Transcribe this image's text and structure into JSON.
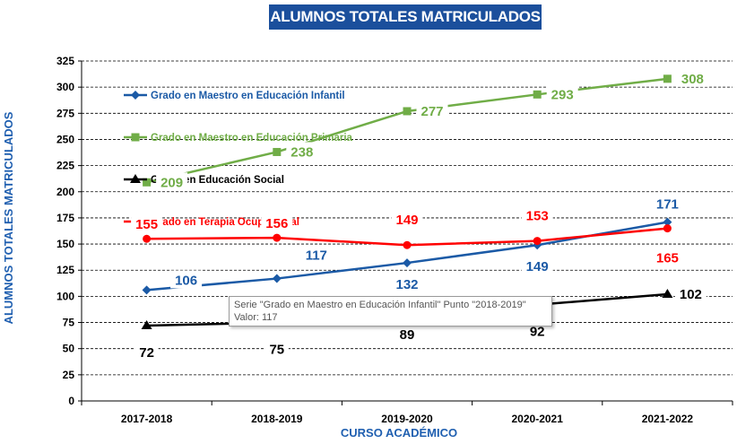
{
  "chart_data": {
    "type": "line",
    "title": "ALUMNOS TOTALES MATRICULADOS",
    "xlabel": "CURSO ACADÉMICO",
    "ylabel": "ALUMNOS TOTALES MATRICULADOS",
    "categories": [
      "2017-2018",
      "2018-2019",
      "2019-2020",
      "2020-2021",
      "2021-2022"
    ],
    "ylim": [
      0,
      325
    ],
    "yticks": [
      0,
      25,
      50,
      75,
      100,
      125,
      150,
      175,
      200,
      225,
      250,
      275,
      300,
      325
    ],
    "grid": "horizontal dashed",
    "legend_position": "inside-left",
    "series": [
      {
        "name": "Grado en Maestro en Educación Infantil",
        "color": "#1b5aa6",
        "marker": "diamond",
        "values": [
          106,
          117,
          132,
          149,
          171
        ]
      },
      {
        "name": "Grado en Maestro en Educación Primaria",
        "color": "#70ad47",
        "marker": "square",
        "values": [
          209,
          238,
          277,
          293,
          308
        ]
      },
      {
        "name": "Grado en Educación Social",
        "color": "#000000",
        "marker": "triangle",
        "values": [
          72,
          75,
          89,
          92,
          102
        ]
      },
      {
        "name": "Grado en Terapia Ocupacional",
        "color": "#ff0000",
        "marker": "circle",
        "values": [
          155,
          156,
          149,
          153,
          165
        ]
      }
    ]
  },
  "tooltip": {
    "line1": "Serie \"Grado en Maestro en Educación Infantil\" Punto \"2018-2019\"",
    "line2": "Valor: 117"
  }
}
